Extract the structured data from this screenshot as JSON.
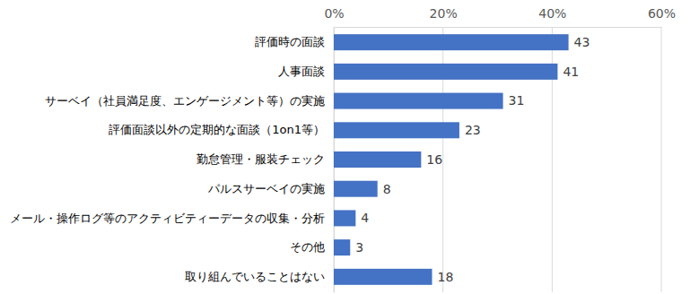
{
  "chart_data": {
    "type": "bar",
    "orientation": "horizontal",
    "categories": [
      "評価時の面談",
      "人事面談",
      "サーベイ（社員満足度、エンゲージメント等）の実施",
      "評価面談以外の定期的な面談（1on1等）",
      "勤怠管理・服装チェック",
      "パルスサーベイの実施",
      "メール・操作ログ等のアクティビティーデータの収集・分析",
      "その他",
      "取り組んでいることはない"
    ],
    "values": [
      43,
      41,
      31,
      23,
      16,
      8,
      4,
      3,
      18
    ],
    "color": "#4472c4",
    "xlim": [
      0,
      60
    ],
    "xticks": [
      {
        "value": 0,
        "label": "0%"
      },
      {
        "value": 20,
        "label": "20%"
      },
      {
        "value": 40,
        "label": "40%"
      },
      {
        "value": 60,
        "label": "60%"
      }
    ],
    "grid": true,
    "data_labels": true
  }
}
